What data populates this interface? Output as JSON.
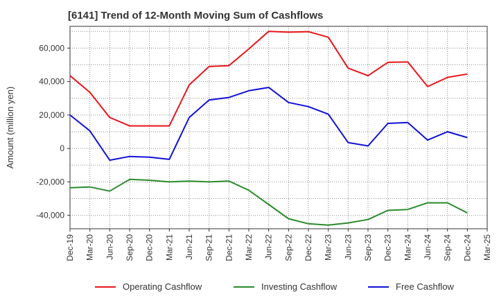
{
  "title": "[6141]  Trend of 12-Month Moving Sum of Cashflows",
  "colors": {
    "operating": "#e8141a",
    "investing": "#2b8a2b",
    "free": "#1010d8",
    "grid": "#888888",
    "axis": "#333333"
  },
  "chart_data": {
    "type": "line",
    "ylabel": "Amount (million yen)",
    "ylim": [
      -48000,
      73000
    ],
    "yticks": [
      60000,
      40000,
      20000,
      0,
      -20000,
      -40000
    ],
    "ytick_labels": [
      "60,000",
      "40,000",
      "20,000",
      "0",
      "-20,000",
      "-40,000"
    ],
    "x_tick_labels": [
      "Dec-19",
      "Mar-20",
      "Jun-20",
      "Sep-20",
      "Dec-20",
      "Mar-21",
      "Jun-21",
      "Sep-21",
      "Dec-21",
      "Mar-22",
      "Jun-22",
      "Sep-22",
      "Dec-22",
      "Mar-23",
      "Jun-23",
      "Sep-23",
      "Dec-23",
      "Mar-24",
      "Jun-24",
      "Sep-24",
      "Dec-24",
      "Mar-25"
    ],
    "categories": [
      "Dec-19",
      "Mar-20",
      "Jun-20",
      "Sep-20",
      "Dec-20",
      "Mar-21",
      "Jun-21",
      "Sep-21",
      "Dec-21",
      "Mar-22",
      "Jun-22",
      "Sep-22",
      "Dec-22",
      "Mar-23",
      "Jun-23",
      "Sep-23",
      "Dec-23",
      "Mar-24",
      "Jun-24",
      "Sep-24",
      "Dec-24"
    ],
    "grid": true,
    "legend_position": "bottom",
    "series": [
      {
        "name": "Operating Cashflow",
        "color": "#e8141a",
        "values": [
          43500,
          33500,
          18500,
          13500,
          13500,
          13500,
          38000,
          49000,
          49500,
          59500,
          70000,
          69500,
          69800,
          66500,
          48000,
          43500,
          51500,
          51700,
          37000,
          42500,
          44500
        ]
      },
      {
        "name": "Investing Cashflow",
        "color": "#2b8a2b",
        "values": [
          -23500,
          -23000,
          -25500,
          -18500,
          -19000,
          -20000,
          -19500,
          -20000,
          -19500,
          -25000,
          -33500,
          -42000,
          -45000,
          -45800,
          -44500,
          -42500,
          -37000,
          -36500,
          -32500,
          -32500,
          -38500
        ]
      },
      {
        "name": "Free Cashflow",
        "color": "#1010d8",
        "values": [
          20000,
          10500,
          -7000,
          -4800,
          -5200,
          -6500,
          18500,
          29000,
          30500,
          34500,
          36500,
          27500,
          25000,
          20500,
          3500,
          1500,
          15000,
          15500,
          5000,
          10000,
          6500
        ]
      }
    ]
  }
}
